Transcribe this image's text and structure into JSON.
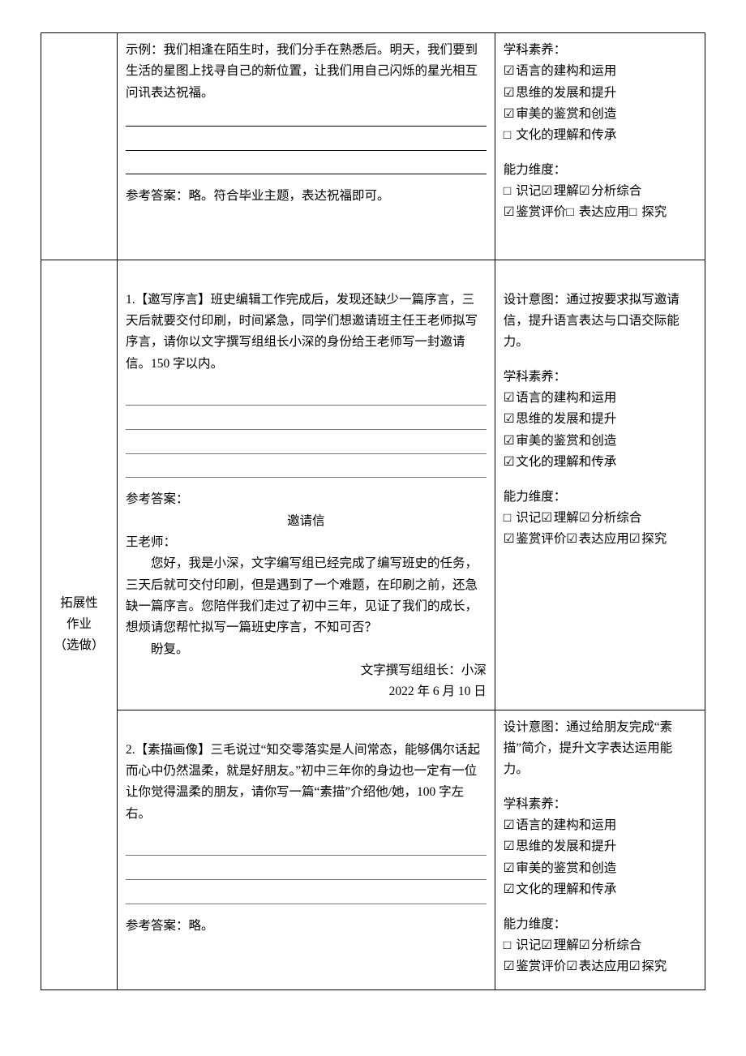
{
  "checkbox": {
    "checked": "☑",
    "unchecked": "□"
  },
  "labels": {
    "row2": "拓展性\n作业\n（选做）"
  },
  "row1": {
    "example": "示例：我们相逢在陌生时，我们分手在熟悉后。明天，我们要到生活的星图上找寻自己的新位置，让我们用自己闪烁的星光相互问讯表达祝福。",
    "answer": "参考答案：略。符合毕业主题，表达祝福即可。",
    "meta": {
      "suyang_title": "学科素养：",
      "suyang": [
        {
          "checked": true,
          "text": "语言的建构和运用"
        },
        {
          "checked": true,
          "text": "思维的发展和提升"
        },
        {
          "checked": true,
          "text": "审美的鉴赏和创造"
        },
        {
          "checked": false,
          "text": "文化的理解和传承"
        }
      ],
      "ability_title": "能力维度：",
      "ability_line1": [
        {
          "checked": false,
          "text": "识记"
        },
        {
          "checked": true,
          "text": "理解"
        },
        {
          "checked": true,
          "text": "分析综合"
        }
      ],
      "ability_line2": [
        {
          "checked": true,
          "text": "鉴赏评价"
        },
        {
          "checked": false,
          "text": "表达应用"
        },
        {
          "checked": false,
          "text": "探究"
        }
      ]
    }
  },
  "row2a": {
    "prompt": "1.【邀写序言】班史编辑工作完成后，发现还缺少一篇序言，三天后就要交付印刷，时间紧急，同学们想邀请班主任王老师拟写序言，请你以文字撰写组组长小深的身份给王老师写一封邀请信。150 字以内。",
    "answer_label": "参考答案：",
    "letter": {
      "title": "邀请信",
      "salutation": "王老师：",
      "body": "您好，我是小深，文字编写组已经完成了编写班史的任务，三天后就可交付印刷，但是遇到了一个难题，在印刷之前，还急缺一篇序言。您陪伴我们走过了初中三年，见证了我们的成长，想烦请您帮忙拟写一篇班史序言，不知可否？",
      "closing": "盼复。",
      "sign": "文字撰写组组长：小深",
      "date": "2022 年 6 月 10 日"
    },
    "meta": {
      "intent_title": "设计意图：",
      "intent": "通过按要求拟写邀请信，提升语言表达与口语交际能力。",
      "suyang_title": "学科素养：",
      "suyang": [
        {
          "checked": true,
          "text": "语言的建构和运用"
        },
        {
          "checked": true,
          "text": "思维的发展和提升"
        },
        {
          "checked": true,
          "text": "审美的鉴赏和创造"
        },
        {
          "checked": true,
          "text": "文化的理解和传承"
        }
      ],
      "ability_title": "能力维度：",
      "ability_line1": [
        {
          "checked": false,
          "text": "识记"
        },
        {
          "checked": true,
          "text": "理解"
        },
        {
          "checked": true,
          "text": "分析综合"
        }
      ],
      "ability_line2": [
        {
          "checked": true,
          "text": "鉴赏评价"
        },
        {
          "checked": true,
          "text": "表达应用"
        },
        {
          "checked": true,
          "text": "探究"
        }
      ]
    }
  },
  "row2b": {
    "prompt": "2.【素描画像】三毛说过“知交零落实是人间常态，能够偶尔话起而心中仍然温柔，就是好朋友。”初中三年你的身边也一定有一位让你觉得温柔的朋友，请你写一篇“素描”介绍他/她，100 字左右。",
    "answer": "参考答案：略。",
    "meta": {
      "intent_title": "设计意图：",
      "intent": "通过给朋友完成“素描”简介，提升文字表达运用能力。",
      "suyang_title": "学科素养：",
      "suyang": [
        {
          "checked": true,
          "text": "语言的建构和运用"
        },
        {
          "checked": true,
          "text": "思维的发展和提升"
        },
        {
          "checked": true,
          "text": "审美的鉴赏和创造"
        },
        {
          "checked": true,
          "text": "文化的理解和传承"
        }
      ],
      "ability_title": "能力维度：",
      "ability_line1": [
        {
          "checked": false,
          "text": "识记"
        },
        {
          "checked": true,
          "text": "理解"
        },
        {
          "checked": true,
          "text": "分析综合"
        }
      ],
      "ability_line2": [
        {
          "checked": true,
          "text": "鉴赏评价"
        },
        {
          "checked": true,
          "text": "表达应用"
        },
        {
          "checked": true,
          "text": "探究"
        }
      ]
    }
  }
}
